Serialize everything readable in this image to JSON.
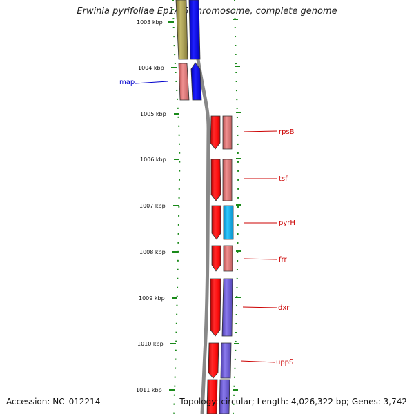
{
  "title": "Erwinia pyrifoliae Ep1/96 chromosome, complete genome",
  "accession": "Accession: NC_012214",
  "topology": "Topology: circular; Length: 4,026,322 bp; Genes: 3,742",
  "colors": {
    "backbone": "#888888",
    "tick": "#1a8a1a",
    "left_label": "#0000cc",
    "right_label": "#cc0000",
    "cds_red": "#ff1a1a",
    "rrna_pink": "#e88080",
    "blue": "#1a1aff",
    "olive": "#b2a85a",
    "cyan": "#22b8ee",
    "purple": "#7766dd"
  },
  "kbp_ticks": [
    "1003 kbp",
    "1004 kbp",
    "1005 kbp",
    "1006 kbp",
    "1007 kbp",
    "1008 kbp",
    "1009 kbp",
    "1010 kbp",
    "1011 kbp"
  ],
  "left_genes": [
    {
      "name": "map"
    }
  ],
  "right_genes": [
    {
      "name": "rpsB"
    },
    {
      "name": "tsf"
    },
    {
      "name": "pyrH"
    },
    {
      "name": "frr"
    },
    {
      "name": "dxr"
    },
    {
      "name": "uppS"
    }
  ]
}
